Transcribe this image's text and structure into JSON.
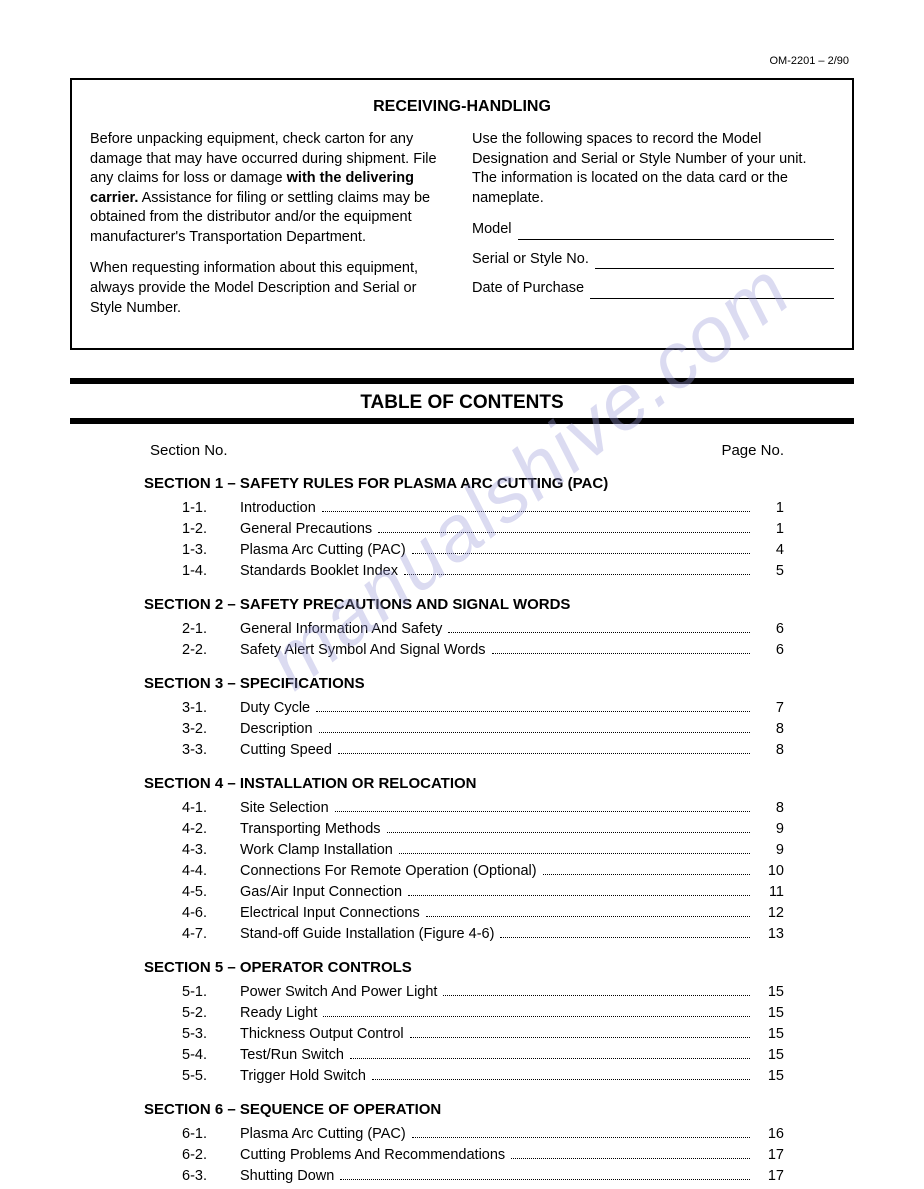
{
  "doc_id": "OM-2201 – 2/90",
  "receiving": {
    "title": "RECEIVING-HANDLING",
    "left_p1a": "Before unpacking equipment, check carton for any damage that may have occurred during shipment. File any claims for loss or damage ",
    "left_p1b": "with the delivering carrier.",
    "left_p1c": " Assistance for filing or settling claims may be obtained from the distributor and/or the equipment manufacturer's Transportation Department.",
    "left_p2": "When requesting information about this equipment, always provide the Model Description and Serial or Style Number.",
    "right_p1": "Use the following spaces to record the Model Designation and Serial or Style Number of your unit. The information is located on the data card or the nameplate.",
    "field_model": "Model",
    "field_serial": "Serial or Style No.",
    "field_date": "Date of Purchase"
  },
  "toc": {
    "title": "TABLE OF CONTENTS",
    "head_left": "Section No.",
    "head_right": "Page No.",
    "watermark": "manualshive.com",
    "sections": [
      {
        "title": "SECTION 1 – SAFETY RULES FOR PLASMA ARC CUTTING (PAC)",
        "items": [
          {
            "n": "1-1.",
            "t": "Introduction",
            "p": "1"
          },
          {
            "n": "1-2.",
            "t": "General Precautions",
            "p": "1"
          },
          {
            "n": "1-3.",
            "t": "Plasma Arc Cutting (PAC)",
            "p": "4"
          },
          {
            "n": "1-4.",
            "t": "Standards Booklet Index",
            "p": "5"
          }
        ]
      },
      {
        "title": "SECTION 2 – SAFETY PRECAUTIONS AND SIGNAL WORDS",
        "items": [
          {
            "n": "2-1.",
            "t": "General Information And Safety",
            "p": "6"
          },
          {
            "n": "2-2.",
            "t": "Safety Alert Symbol And Signal Words",
            "p": "6"
          }
        ]
      },
      {
        "title": "SECTION 3 – SPECIFICATIONS",
        "items": [
          {
            "n": "3-1.",
            "t": "Duty Cycle",
            "p": "7"
          },
          {
            "n": "3-2.",
            "t": "Description",
            "p": "8"
          },
          {
            "n": "3-3.",
            "t": "Cutting Speed",
            "p": "8"
          }
        ]
      },
      {
        "title": "SECTION 4 – INSTALLATION OR RELOCATION",
        "items": [
          {
            "n": "4-1.",
            "t": "Site Selection",
            "p": "8"
          },
          {
            "n": "4-2.",
            "t": "Transporting Methods",
            "p": "9"
          },
          {
            "n": "4-3.",
            "t": "Work Clamp Installation",
            "p": "9"
          },
          {
            "n": "4-4.",
            "t": "Connections For Remote Operation (Optional)",
            "p": "10"
          },
          {
            "n": "4-5.",
            "t": "Gas/Air Input Connection",
            "p": "11"
          },
          {
            "n": "4-6.",
            "t": "Electrical Input Connections",
            "p": "12"
          },
          {
            "n": "4-7.",
            "t": "Stand-off Guide Installation (Figure 4-6)",
            "p": "13"
          }
        ]
      },
      {
        "title": "SECTION 5 – OPERATOR CONTROLS",
        "items": [
          {
            "n": "5-1.",
            "t": "Power Switch And Power Light",
            "p": "15"
          },
          {
            "n": "5-2.",
            "t": "Ready Light",
            "p": "15"
          },
          {
            "n": "5-3.",
            "t": "Thickness Output Control",
            "p": "15"
          },
          {
            "n": "5-4.",
            "t": "Test/Run Switch",
            "p": "15"
          },
          {
            "n": "5-5.",
            "t": "Trigger Hold Switch",
            "p": "15"
          }
        ]
      },
      {
        "title": "SECTION 6 – SEQUENCE OF OPERATION",
        "items": [
          {
            "n": "6-1.",
            "t": "Plasma Arc Cutting (PAC)",
            "p": "16"
          },
          {
            "n": "6-2.",
            "t": "Cutting Problems And Recommendations",
            "p": "17"
          },
          {
            "n": "6-3.",
            "t": "Shutting Down",
            "p": "17"
          }
        ]
      }
    ]
  }
}
